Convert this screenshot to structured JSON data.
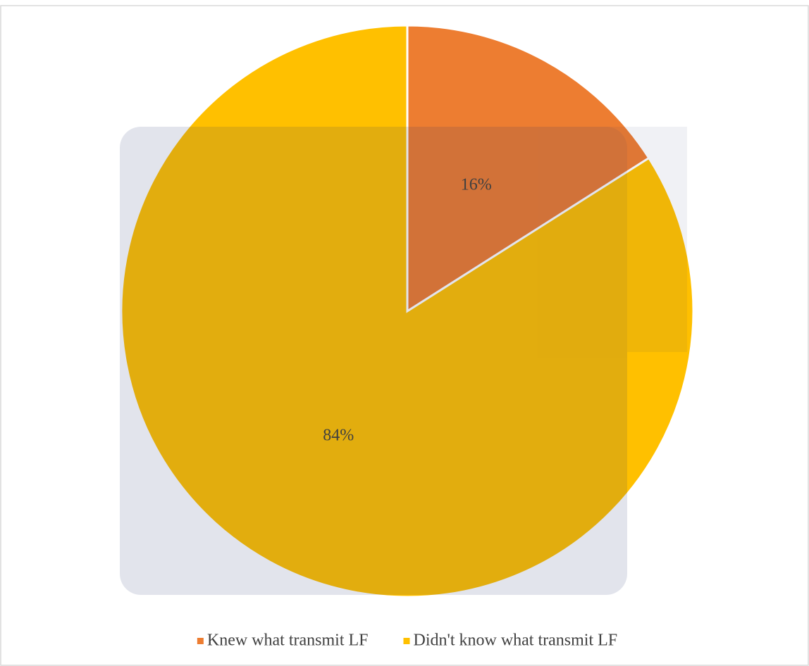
{
  "chart_data": {
    "type": "pie",
    "categories": [
      "Knew what transmit LF",
      "Didn't know what transmit LF"
    ],
    "values": [
      16,
      84
    ],
    "value_labels": [
      "16%",
      "84%"
    ],
    "colors": [
      "#ED7D31",
      "#FFC000"
    ],
    "legend": "bottom"
  }
}
